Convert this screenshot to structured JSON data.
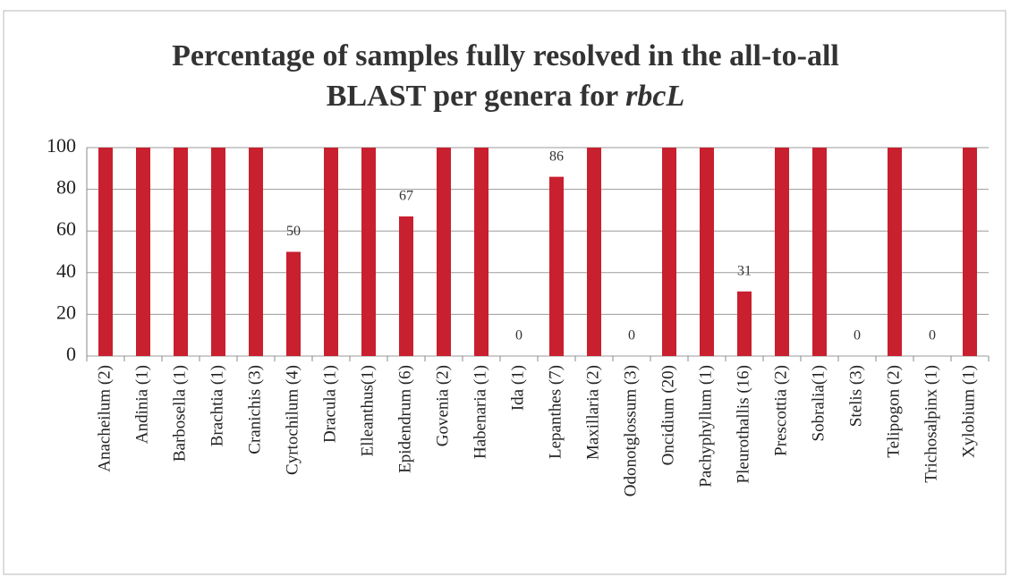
{
  "chart_data": {
    "type": "bar",
    "title": [
      "Percentage of samples fully resolved in the all-to-all",
      "BLAST per genera for",
      "rbcL"
    ],
    "categories": [
      "Anacheilum (2)",
      "Andinia (1)",
      "Barbosella (1)",
      "Brachtia (1)",
      "Cranichis (3)",
      "Cyrtochilum (4)",
      "Dracula (1)",
      "Elleanthus(1)",
      "Epidendrum (6)",
      "Govenia (2)",
      "Habenaria (1)",
      "Ida (1)",
      "Lepanthes (7)",
      "Maxillaria (2)",
      "Odonotglossum (3)",
      "Oncidium (20)",
      "Pachyphyllum (1)",
      "Pleurothallis (16)",
      "Prescottia (2)",
      "Sobralia(1)",
      "Stelis (3)",
      "Telipogon (2)",
      "Trichosalpinx (1)",
      "Xylobium (1)"
    ],
    "values": [
      100,
      100,
      100,
      100,
      100,
      50,
      100,
      100,
      67,
      100,
      100,
      0,
      86,
      100,
      0,
      100,
      100,
      31,
      100,
      100,
      0,
      100,
      0,
      100
    ],
    "value_labels": [
      null,
      null,
      null,
      null,
      null,
      "50",
      null,
      null,
      "67",
      null,
      null,
      "0",
      "86",
      null,
      "0",
      null,
      null,
      "31",
      null,
      null,
      "0",
      null,
      "0",
      null
    ],
    "color": "#c8202f",
    "ylim": [
      0,
      100
    ],
    "yticks": [
      0,
      20,
      40,
      60,
      80,
      100
    ],
    "grid": true
  }
}
